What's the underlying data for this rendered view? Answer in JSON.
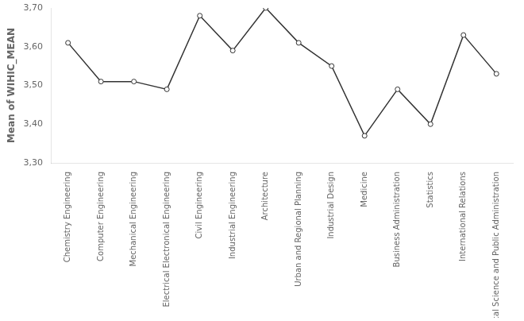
{
  "chart_data": {
    "type": "line",
    "categories": [
      "Chemistry Engineering",
      "Computer Engineering",
      "Mechanical Engineering",
      "Electrical Electronical Engineering",
      "Civil Engineering",
      "Industrial Engineering",
      "Architecture",
      "Urban and Regional Planning",
      "Industrial Design",
      "Medicine",
      "Business Administration",
      "Statistics",
      "International Relations",
      "Political Science and Public Administration"
    ],
    "values": [
      3.61,
      3.51,
      3.51,
      3.49,
      3.68,
      3.59,
      3.7,
      3.61,
      3.55,
      3.37,
      3.49,
      3.4,
      3.63,
      3.53
    ],
    "y_label": "Mean of WIHIC_MEAN",
    "ylim": [
      3.3,
      3.7
    ],
    "yticks": [
      {
        "value": 3.3,
        "label": "3,30"
      },
      {
        "value": 3.4,
        "label": "3,40"
      },
      {
        "value": 3.5,
        "label": "3,50"
      },
      {
        "value": 3.6,
        "label": "3,60"
      },
      {
        "value": 3.7,
        "label": "3,70"
      }
    ],
    "color": "#333333",
    "marker": "circle",
    "grid": false
  }
}
